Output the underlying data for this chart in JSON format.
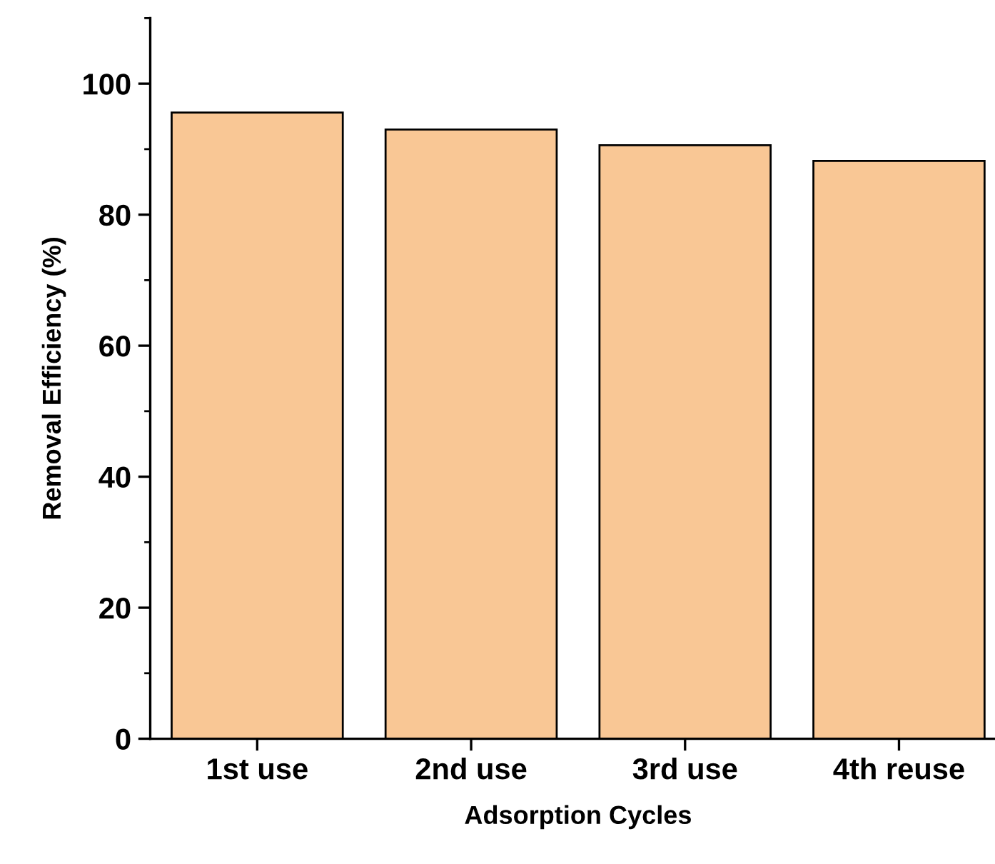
{
  "chart_data": {
    "type": "bar",
    "xlabel": "Adsorption Cycles",
    "ylabel": "Removal Efficiency (%)",
    "categories": [
      "1st use",
      "2nd use",
      "3rd use",
      "4th reuse"
    ],
    "values": [
      95.6,
      93.0,
      90.6,
      88.2
    ],
    "color": "#f9c795",
    "ylim": [
      0,
      110
    ],
    "yticks": [
      0,
      20,
      40,
      60,
      80,
      100
    ],
    "grid": false,
    "legend": false
  }
}
